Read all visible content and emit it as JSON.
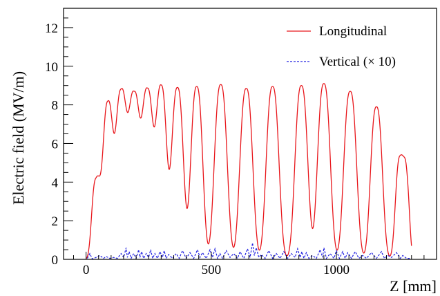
{
  "chart_data": {
    "type": "line",
    "title": "",
    "xlabel": "Z [mm]",
    "ylabel": "Electric field (MV/m)",
    "xlim": [
      -90,
      1400
    ],
    "ylim": [
      0,
      13
    ],
    "x_ticks": [
      0,
      500,
      1000
    ],
    "x_tick_labels": [
      "0",
      "500",
      "1000"
    ],
    "y_ticks": [
      0,
      2,
      4,
      6,
      8,
      10,
      12
    ],
    "y_tick_labels": [
      "0",
      "2",
      "4",
      "6",
      "8",
      "10",
      "12"
    ],
    "grid": false,
    "legend_position": "top-right",
    "series": [
      {
        "name": "Longitudinal",
        "style": "solid",
        "color": "#e8161b",
        "peaks": [
          {
            "z": 40,
            "height": 4.15,
            "width": 22,
            "shoulder": 0
          },
          {
            "z": 87,
            "height": 8.15,
            "width": 26,
            "shoulder": 0
          },
          {
            "z": 140,
            "height": 8.75,
            "width": 28,
            "shoulder": 0
          },
          {
            "z": 192,
            "height": 8.6,
            "width": 28,
            "shoulder": 0
          },
          {
            "z": 245,
            "height": 8.8,
            "width": 28,
            "shoulder": 0
          },
          {
            "z": 300,
            "height": 9.0,
            "width": 28,
            "shoulder": 0
          },
          {
            "z": 365,
            "height": 8.9,
            "width": 30,
            "shoulder": 0
          },
          {
            "z": 442,
            "height": 8.95,
            "width": 30,
            "shoulder": 0
          },
          {
            "z": 538,
            "height": 9.05,
            "width": 32,
            "shoulder": 0
          },
          {
            "z": 640,
            "height": 8.85,
            "width": 32,
            "shoulder": 0
          },
          {
            "z": 745,
            "height": 8.95,
            "width": 32,
            "shoulder": 0
          },
          {
            "z": 860,
            "height": 9.0,
            "width": 32,
            "shoulder": 0
          },
          {
            "z": 950,
            "height": 9.1,
            "width": 32,
            "shoulder": 0
          },
          {
            "z": 1055,
            "height": 8.7,
            "width": 32,
            "shoulder": 0
          },
          {
            "z": 1160,
            "height": 7.9,
            "width": 30,
            "shoulder": 0
          },
          {
            "z": 1255,
            "height": 5.35,
            "width": 24,
            "shoulder": 3.1
          }
        ]
      },
      {
        "name": "Vertical (× 10)",
        "style": "dashed",
        "color": "#2020e0",
        "x": [
          5,
          15,
          25,
          40,
          55,
          70,
          80,
          95,
          110,
          125,
          140,
          150,
          160,
          165,
          172,
          180,
          190,
          200,
          210,
          215,
          222,
          230,
          240,
          250,
          258,
          266,
          275,
          285,
          295,
          305,
          312,
          320,
          330,
          345,
          360,
          372,
          385,
          400,
          415,
          430,
          445,
          455,
          465,
          480,
          495,
          505,
          515,
          525,
          535,
          545,
          560,
          575,
          590,
          605,
          615,
          630,
          645,
          655,
          665,
          672,
          680,
          690,
          700,
          715,
          730,
          745,
          760,
          775,
          790,
          805,
          820,
          835,
          845,
          855,
          862,
          870,
          880,
          890,
          905,
          920,
          935,
          945,
          950,
          960,
          975,
          990,
          1000,
          1012,
          1025,
          1035,
          1045,
          1060,
          1075,
          1090,
          1105,
          1120,
          1140,
          1160,
          1180,
          1192,
          1205,
          1220,
          1240,
          1255,
          1265,
          1280,
          1295
        ],
        "y": [
          0.05,
          0.3,
          0.02,
          0.1,
          0.2,
          0.05,
          0.15,
          0.05,
          0.1,
          0.05,
          0.3,
          0.1,
          0.6,
          0.1,
          0.4,
          0.05,
          0.3,
          0.05,
          0.5,
          0.1,
          0.4,
          0.05,
          0.3,
          0.1,
          0.5,
          0.05,
          0.3,
          0.05,
          0.4,
          0.1,
          0.45,
          0.05,
          0.25,
          0.05,
          0.3,
          0.05,
          0.45,
          0.05,
          0.35,
          0.05,
          0.5,
          0.1,
          0.35,
          0.05,
          0.5,
          0.1,
          0.55,
          0.05,
          0.3,
          0.05,
          0.45,
          0.1,
          0.3,
          0.05,
          0.4,
          0.05,
          0.55,
          0.1,
          0.85,
          0.2,
          0.6,
          0.1,
          0.25,
          0.05,
          0.45,
          0.05,
          0.3,
          0.05,
          0.4,
          0.05,
          0.3,
          0.1,
          0.55,
          0.1,
          0.4,
          0.05,
          0.35,
          0.05,
          0.2,
          0.05,
          0.5,
          0.1,
          0.6,
          0.05,
          0.3,
          0.05,
          0.45,
          0.05,
          0.4,
          0.05,
          0.35,
          0.05,
          0.4,
          0.05,
          0.2,
          0.05,
          0.35,
          0.05,
          0.4,
          0.05,
          0.2,
          0.1,
          0.35,
          0.05,
          0.2,
          0.05,
          0.05
        ]
      }
    ]
  }
}
